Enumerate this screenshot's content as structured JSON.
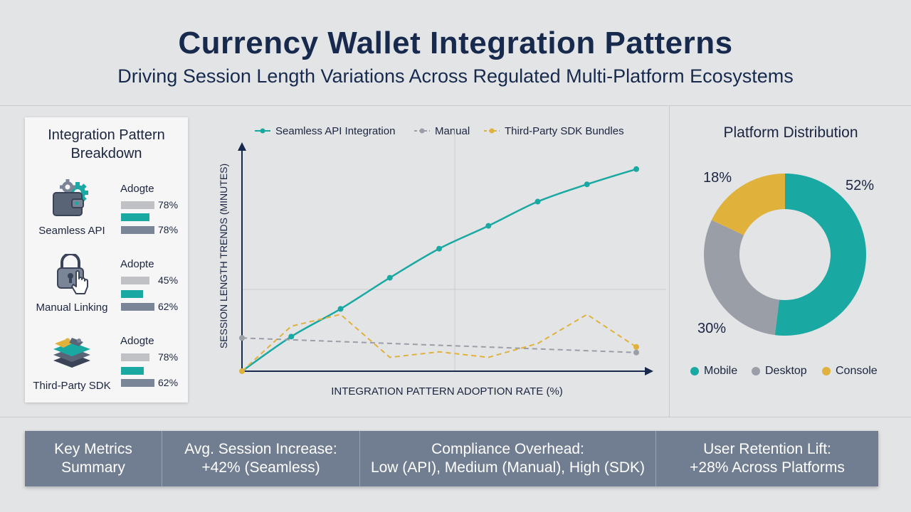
{
  "title": "Currency Wallet Integration Patterns",
  "subtitle": "Driving Session Length Variations Across Regulated Multi-Platform Ecosystems",
  "breakdown": {
    "title_line1": "Integration Pattern",
    "title_line2": "Breakdown",
    "patterns": [
      {
        "label": "Seamless API",
        "adopt_label": "Adogte",
        "icon": "wallet-gear-icon",
        "bars": [
          78,
          78
        ]
      },
      {
        "label": "Manual Linking",
        "adopt_label": "Adopte",
        "icon": "lock-hand-icon",
        "bars": [
          45,
          62
        ]
      },
      {
        "label": "Third-Party SDK",
        "adopt_label": "Adogte",
        "icon": "puzzle-layers-icon",
        "bars": [
          78,
          62
        ]
      }
    ],
    "bar_colors": [
      "#bfc1c5",
      "#1aa9a2",
      "#7a8597"
    ]
  },
  "chart_data": [
    {
      "type": "line",
      "xlabel": "INTEGRATION PATTERN ADOPTION RATE (%)",
      "ylabel": "SESSION LENGTH TRENDS (MINUTES)",
      "series": [
        {
          "name": "Seamless API Integration",
          "color": "#1aa9a2",
          "style": "solid",
          "markers": true,
          "points": [
            [
              0,
              0
            ],
            [
              1,
              0.5
            ],
            [
              2,
              0.9
            ],
            [
              3,
              1.35
            ],
            [
              4,
              1.77
            ],
            [
              5,
              2.1
            ],
            [
              6,
              2.45
            ],
            [
              7,
              2.7
            ],
            [
              8,
              2.92
            ]
          ]
        },
        {
          "name": "Manual",
          "color": "#9a9ea6",
          "style": "dashed",
          "markers": true,
          "points": [
            [
              0,
              0.48
            ],
            [
              8,
              0.27
            ]
          ]
        },
        {
          "name": "Third-Party SDK Bundles",
          "color": "#e0b23c",
          "style": "dashed",
          "markers": true,
          "points": [
            [
              0,
              0
            ],
            [
              1,
              0.65
            ],
            [
              2,
              0.82
            ],
            [
              3,
              0.2
            ],
            [
              4,
              0.28
            ],
            [
              5,
              0.2
            ],
            [
              6,
              0.4
            ],
            [
              7,
              0.82
            ],
            [
              8,
              0.35
            ]
          ]
        }
      ],
      "grid": true,
      "legend": "top"
    },
    {
      "type": "pie",
      "title": "Platform Distribution",
      "slices": [
        {
          "label": "Mobile",
          "value": 52,
          "display": "52%",
          "color": "#1aa9a2"
        },
        {
          "label": "Desktop",
          "value": 30,
          "display": "30%",
          "color": "#9a9ea6"
        },
        {
          "label": "Console",
          "value": 18,
          "display": "18%",
          "color": "#e0b23c"
        }
      ]
    }
  ],
  "metrics": [
    {
      "line1": "Key Metrics",
      "line2": "Summary"
    },
    {
      "line1": "Avg. Session Increase:",
      "line2": "+42% (Seamless)"
    },
    {
      "line1": "Compliance Overhead:",
      "line2": "Low (API), Medium (Manual), High (SDK)"
    },
    {
      "line1": "User Retention Lift:",
      "line2": "+28% Across Platforms"
    }
  ]
}
